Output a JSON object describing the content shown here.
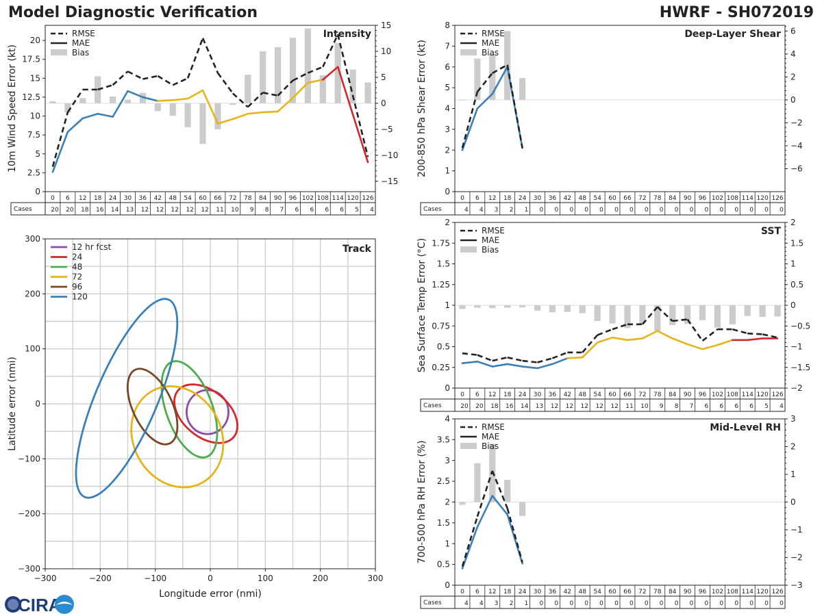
{
  "header": {
    "title_left": "Model Diagnostic Verification",
    "title_right": "HWRF - SH072019"
  },
  "logo": {
    "text": "CIRA"
  },
  "legend_labels": {
    "rmse": "RMSE",
    "mae": "MAE",
    "bias": "Bias"
  },
  "colors": {
    "blue": "#3a80b8",
    "yellow": "#e6b418",
    "red": "#d62728",
    "bias": "#cccccc",
    "rmse": "#222222"
  },
  "chart_data": [
    {
      "id": "intensity",
      "type": "line",
      "title": "Intensity",
      "ylabel": "10m Wind Speed Error (kt)",
      "ylim": [
        0,
        22
      ],
      "yticks": [
        0,
        2.5,
        5,
        7.5,
        10,
        12.5,
        15,
        17.5,
        20
      ],
      "y2lim": [
        -17,
        15
      ],
      "y2ticks": [
        -15,
        -10,
        -5,
        0,
        5,
        10,
        15
      ],
      "x": [
        0,
        6,
        12,
        18,
        24,
        30,
        36,
        42,
        48,
        54,
        60,
        66,
        72,
        78,
        84,
        90,
        96,
        102,
        108,
        114,
        120,
        126
      ],
      "cases_label": "Cases",
      "cases": [
        20,
        20,
        18,
        16,
        14,
        13,
        12,
        12,
        12,
        12,
        12,
        11,
        10,
        9,
        8,
        7,
        6,
        6,
        6,
        6,
        5,
        4
      ],
      "rmse": [
        3.3,
        10.5,
        13.5,
        13.5,
        14.1,
        15.9,
        14.9,
        15.3,
        14.1,
        15.0,
        20.3,
        15.7,
        13.0,
        11.2,
        13.1,
        12.7,
        14.7,
        15.7,
        16.5,
        20.8,
        null,
        4.6
      ],
      "mae": [
        2.6,
        7.9,
        9.7,
        10.3,
        9.9,
        13.3,
        12.5,
        12.0,
        12.1,
        12.3,
        13.4,
        9.0,
        9.6,
        10.3,
        10.5,
        10.6,
        12.4,
        14.4,
        14.8,
        16.5,
        null,
        3.9
      ],
      "bias": [
        0.4,
        -1.8,
        1.0,
        5.2,
        1.3,
        0.7,
        2.0,
        -1.5,
        -2.4,
        -4.6,
        -7.8,
        -5.0,
        -0.3,
        5.5,
        10.0,
        10.8,
        12.6,
        14.4,
        5.4,
        11.6,
        6.5,
        4.0
      ]
    },
    {
      "id": "shear",
      "type": "line",
      "title": "Deep-Layer Shear",
      "ylabel": "200-850 hPa Shear Error (kt)",
      "ylim": [
        0,
        8
      ],
      "yticks": [
        0,
        1,
        2,
        3,
        4,
        5,
        6,
        7,
        8
      ],
      "y2lim": [
        -8,
        6.5
      ],
      "y2ticks": [
        -6,
        -4,
        -2,
        0,
        2,
        4,
        6
      ],
      "x": [
        0,
        6,
        12,
        18,
        24,
        30,
        36,
        42,
        48,
        54,
        60,
        66,
        72,
        78,
        84,
        90,
        96,
        102,
        108,
        114,
        120,
        126
      ],
      "cases_label": "Cases",
      "cases": [
        4,
        4,
        3,
        2,
        1,
        0,
        0,
        0,
        0,
        0,
        0,
        0,
        0,
        0,
        0,
        0,
        0,
        0,
        0,
        0,
        0,
        0
      ],
      "rmse": [
        2.1,
        4.8,
        5.7,
        6.1,
        2.1
      ],
      "mae": [
        2.0,
        4.0,
        4.7,
        6.0,
        2.1
      ],
      "bias": [
        0,
        3.6,
        4.0,
        6.0,
        1.9
      ]
    },
    {
      "id": "sst",
      "type": "line",
      "title": "SST",
      "ylabel": "Sea Surface Temp Error (°C)",
      "ylim": [
        0,
        2
      ],
      "yticks": [
        0,
        0.25,
        0.5,
        0.75,
        1.0,
        1.25,
        1.5,
        1.75,
        2.0
      ],
      "y2lim": [
        -2,
        2
      ],
      "y2ticks": [
        -2.0,
        -1.5,
        -1.0,
        -0.5,
        0.0,
        0.5,
        1.0,
        1.5,
        2.0
      ],
      "x": [
        0,
        6,
        12,
        18,
        24,
        30,
        36,
        42,
        48,
        54,
        60,
        66,
        72,
        78,
        84,
        90,
        96,
        102,
        108,
        114,
        120,
        126
      ],
      "cases_label": "Cases",
      "cases": [
        20,
        20,
        18,
        16,
        14,
        13,
        12,
        12,
        12,
        12,
        12,
        11,
        10,
        9,
        8,
        7,
        6,
        6,
        6,
        6,
        5,
        4
      ],
      "rmse": [
        0.42,
        0.4,
        0.33,
        0.37,
        0.33,
        0.31,
        0.36,
        0.43,
        0.43,
        0.64,
        0.71,
        0.77,
        0.77,
        0.98,
        0.81,
        0.83,
        0.57,
        0.71,
        0.71,
        0.66,
        0.65,
        0.61
      ],
      "mae": [
        0.3,
        0.32,
        0.26,
        0.29,
        0.26,
        0.24,
        0.29,
        0.36,
        0.37,
        0.55,
        0.61,
        0.58,
        0.6,
        0.69,
        0.6,
        0.53,
        0.47,
        0.52,
        0.58,
        0.58,
        0.6,
        0.6
      ],
      "bias": [
        -0.09,
        -0.06,
        -0.07,
        -0.06,
        -0.05,
        -0.13,
        -0.17,
        -0.16,
        -0.19,
        -0.38,
        -0.44,
        -0.55,
        -0.44,
        -0.62,
        -0.48,
        -0.45,
        -0.36,
        -0.54,
        -0.46,
        -0.26,
        -0.28,
        -0.27
      ]
    },
    {
      "id": "rh",
      "type": "line",
      "title": "Mid-Level RH",
      "ylabel": "700-500 hPa RH Error (%)",
      "ylim": [
        0,
        4
      ],
      "yticks": [
        0,
        0.5,
        1.0,
        1.5,
        2.0,
        2.5,
        3.0,
        3.5,
        4.0
      ],
      "y2lim": [
        -3,
        3
      ],
      "y2ticks": [
        -3,
        -2,
        -1,
        0,
        1,
        2,
        3
      ],
      "x": [
        0,
        6,
        12,
        18,
        24,
        30,
        36,
        42,
        48,
        54,
        60,
        66,
        72,
        78,
        84,
        90,
        96,
        102,
        108,
        114,
        120,
        126
      ],
      "cases_label": "Cases",
      "cases": [
        4,
        4,
        3,
        2,
        1,
        0,
        0,
        0,
        0,
        0,
        0,
        0,
        0,
        0,
        0,
        0,
        0,
        0,
        0,
        0,
        0,
        0
      ],
      "rmse": [
        0.45,
        1.65,
        2.75,
        1.85,
        0.55
      ],
      "mae": [
        0.4,
        1.4,
        2.15,
        1.7,
        0.52
      ],
      "bias": [
        -0.1,
        1.4,
        2.1,
        0.8,
        -0.5
      ]
    },
    {
      "id": "track",
      "type": "scatter",
      "title": "Track",
      "xlabel": "Longitude error (nmi)",
      "ylabel": "Latitude error (nmi)",
      "xlim": [
        -300,
        300
      ],
      "ylim": [
        -300,
        300
      ],
      "ticks": [
        -300,
        -200,
        -100,
        0,
        100,
        200,
        300
      ],
      "ellipses": [
        {
          "label": "12 hr fcst",
          "color": "#8e4aa8",
          "cx": -5,
          "cy": -15,
          "rx": 38,
          "ry": 40,
          "angle": 0
        },
        {
          "label": "24",
          "color": "#d62728",
          "cx": -8,
          "cy": -18,
          "rx": 42,
          "ry": 66,
          "angle": -50
        },
        {
          "label": "48",
          "color": "#4aac4a",
          "cx": -38,
          "cy": -10,
          "rx": 42,
          "ry": 92,
          "angle": -20
        },
        {
          "label": "72",
          "color": "#e6b418",
          "cx": -60,
          "cy": -60,
          "rx": 80,
          "ry": 95,
          "angle": -28
        },
        {
          "label": "96",
          "color": "#7b4422",
          "cx": -105,
          "cy": -5,
          "rx": 36,
          "ry": 74,
          "angle": -25
        },
        {
          "label": "120",
          "color": "#3a80b8",
          "cx": -152,
          "cy": 10,
          "rx": 56,
          "ry": 195,
          "angle": 23
        }
      ]
    }
  ]
}
